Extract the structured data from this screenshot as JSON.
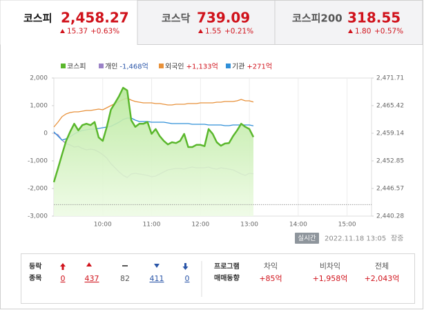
{
  "tabs": [
    {
      "name": "코스피",
      "value": "2,458.27",
      "change": "15.37",
      "change_pct": "+0.63%"
    },
    {
      "name": "코스닥",
      "value": "739.09",
      "change": "1.55",
      "change_pct": "+0.21%"
    },
    {
      "name": "코스피200",
      "value": "318.55",
      "change": "1.80",
      "change_pct": "+0.57%"
    }
  ],
  "chart_data": {
    "type": "line",
    "x": [
      540,
      545,
      550,
      555,
      560,
      565,
      570,
      575,
      580,
      585,
      590,
      595,
      600,
      605,
      610,
      615,
      620,
      625,
      630,
      635,
      640,
      645,
      650,
      655,
      660,
      665,
      670,
      675,
      680,
      685,
      690,
      695,
      700,
      705,
      710,
      715,
      720,
      725,
      730,
      735,
      740,
      745,
      750,
      755,
      760,
      765,
      770,
      775,
      780,
      785
    ],
    "xlim": [
      540,
      930
    ],
    "xticks": [
      {
        "value": 600,
        "label": "10:00"
      },
      {
        "value": 660,
        "label": "11:00"
      },
      {
        "value": 720,
        "label": "12:00"
      },
      {
        "value": 780,
        "label": "13:00"
      },
      {
        "value": 840,
        "label": "14:00"
      },
      {
        "value": 900,
        "label": "15:00"
      }
    ],
    "ylim": [
      -3000,
      2000
    ],
    "yticks": [
      {
        "value": 2000,
        "label": "2,000"
      },
      {
        "value": 1000,
        "label": "1,000"
      },
      0,
      {
        "value": -1000,
        "label": "-1,000"
      },
      {
        "value": -2000,
        "label": "-2,000"
      },
      {
        "value": -3000,
        "label": "-3,000"
      }
    ],
    "y2lim": [
      2440.28,
      2471.71
    ],
    "y2ticks": [
      {
        "value": 2471.71,
        "label": "2,471.71"
      },
      {
        "value": 2465.42,
        "label": "2,465.42"
      },
      {
        "value": 2459.14,
        "label": "2,459.14"
      },
      {
        "value": 2452.85,
        "label": "2,452.85"
      },
      {
        "value": 2446.57,
        "label": "2,446.57"
      },
      {
        "value": 2440.28,
        "label": "2,440.28"
      }
    ],
    "grid": "x",
    "reference_y2": 2442.9,
    "series": [
      {
        "name": "코스피",
        "color": "#5ab72c",
        "axis": "y2",
        "area": true,
        "values": [
          2448.0,
          2451.1,
          2454.3,
          2457.4,
          2459.5,
          2461.3,
          2459.8,
          2461.0,
          2461.3,
          2461.0,
          2461.7,
          2458.2,
          2457.4,
          2460.6,
          2464.5,
          2466.0,
          2467.6,
          2469.5,
          2468.9,
          2462.1,
          2460.6,
          2461.3,
          2461.3,
          2461.7,
          2459.0,
          2460.1,
          2458.5,
          2457.4,
          2456.6,
          2457.1,
          2456.9,
          2457.4,
          2459.0,
          2456.0,
          2456.0,
          2456.5,
          2456.5,
          2456.2,
          2460.1,
          2459.0,
          2457.1,
          2456.3,
          2456.8,
          2456.9,
          2458.5,
          2459.8,
          2461.3,
          2460.6,
          2460.1,
          2458.27
        ]
      },
      {
        "name": "개인",
        "color": "#9b82c7",
        "legend_label": "-1,468억",
        "legend_color": "#2a55a8",
        "values": [
          0,
          -50,
          -250,
          -375,
          -425,
          -500,
          -475,
          -550,
          -600,
          -575,
          -600,
          -675,
          -775,
          -900,
          -1100,
          -1250,
          -1400,
          -1525,
          -1600,
          -1475,
          -1450,
          -1475,
          -1500,
          -1525,
          -1575,
          -1550,
          -1475,
          -1400,
          -1325,
          -1300,
          -1275,
          -1275,
          -1300,
          -1250,
          -1225,
          -1250,
          -1250,
          -1250,
          -1225,
          -1275,
          -1300,
          -1250,
          -1275,
          -1300,
          -1325,
          -1400,
          -1475,
          -1525,
          -1450,
          -1468
        ]
      },
      {
        "name": "외국인",
        "color": "#e8913a",
        "legend_label": "+1,133억",
        "legend_color": "#d0121b",
        "values": [
          225,
          400,
          600,
          700,
          750,
          775,
          775,
          800,
          825,
          825,
          850,
          875,
          850,
          925,
          1000,
          1075,
          1150,
          1225,
          1275,
          1200,
          1150,
          1125,
          1100,
          1100,
          1100,
          1075,
          1075,
          1050,
          1025,
          1025,
          1050,
          1050,
          1050,
          1075,
          1075,
          1075,
          1100,
          1100,
          1100,
          1100,
          1125,
          1125,
          1150,
          1150,
          1150,
          1175,
          1225,
          1175,
          1175,
          1133
        ]
      },
      {
        "name": "기관",
        "color": "#2f8fd8",
        "legend_label": "+271억",
        "legend_color": "#d0121b",
        "values": [
          50,
          -100,
          -250,
          -200,
          -125,
          -25,
          50,
          100,
          125,
          150,
          150,
          175,
          200,
          225,
          250,
          325,
          400,
          500,
          550,
          550,
          475,
          425,
          425,
          425,
          400,
          400,
          400,
          400,
          375,
          350,
          350,
          350,
          350,
          350,
          325,
          325,
          325,
          325,
          300,
          300,
          300,
          300,
          275,
          275,
          300,
          300,
          300,
          300,
          300,
          271
        ]
      }
    ]
  },
  "status": {
    "button": "실시간",
    "datetime": "2022.11.18 13:05",
    "session": "장중"
  },
  "breadth": {
    "label": [
      "등락",
      "종목"
    ],
    "values": [
      0,
      437,
      82,
      411,
      0
    ]
  },
  "program": {
    "label": [
      "프로그램",
      "매매동향"
    ],
    "items": [
      {
        "name": "차익",
        "value": "+85억"
      },
      {
        "name": "비차익",
        "value": "+1,958억"
      },
      {
        "name": "전체",
        "value": "+2,043억"
      }
    ]
  }
}
